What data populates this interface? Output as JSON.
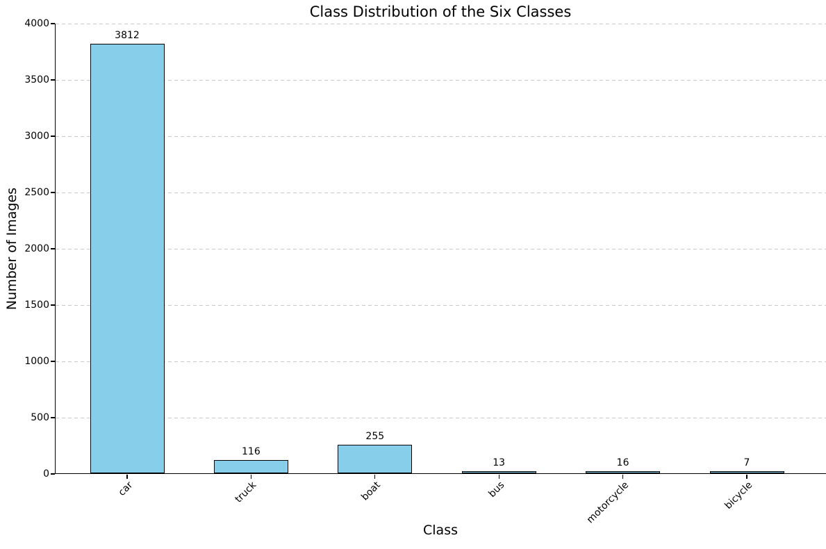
{
  "chart_data": {
    "type": "bar",
    "title": "Class Distribution of the Six Classes",
    "xlabel": "Class",
    "ylabel": "Number of Images",
    "categories": [
      "car",
      "truck",
      "boat",
      "bus",
      "motorcycle",
      "bicycle"
    ],
    "values": [
      3812,
      116,
      255,
      13,
      16,
      7
    ],
    "bar_value_labels": [
      "3812",
      "116",
      "255",
      "13",
      "16",
      "7"
    ],
    "yticks": [
      0,
      500,
      1000,
      1500,
      2000,
      2500,
      3000,
      3500,
      4000
    ],
    "ylim": [
      0,
      4000
    ],
    "grid": {
      "axis": "y",
      "style": "dashed",
      "color": "#c8c8c8"
    },
    "bar_color": "#87CEEB",
    "bar_edge_color": "#000000",
    "x_tick_label_rotation_deg": 45,
    "legend_position": "none"
  }
}
